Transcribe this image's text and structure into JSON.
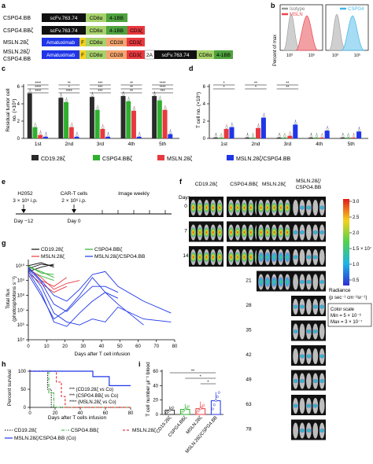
{
  "panels": {
    "a": {
      "letter": "a",
      "constructs": [
        {
          "name": "CSPG4.BB",
          "parts": [
            "scFv.763.74",
            "CD8α",
            "4-1BB"
          ]
        },
        {
          "name": "CSPG4.BBζ",
          "parts": [
            "scFv.763.74",
            "CD8α",
            "4-1BB",
            "CD3ζ"
          ]
        },
        {
          "name": "MSLN.28ζ",
          "parts": [
            "Amatuximab",
            "F",
            "CD8α",
            "CD28",
            "CD3ζ"
          ]
        },
        {
          "name_line1": "MSLN.28ζ/",
          "name_line2": "CSPG4.BB",
          "parts": [
            "Amatuximab",
            "F",
            "CD8α",
            "CD28",
            "CD3ζ",
            "2A",
            "scFv.763.74",
            "CD8α",
            "4-1BB"
          ]
        }
      ]
    },
    "b": {
      "letter": "b",
      "ylabel": "Percent of max",
      "legend_left": [
        "Isotype",
        "MSLN"
      ],
      "legend_right": [
        "CSPG4"
      ],
      "xticks": [
        "10³",
        "10⁵",
        "10³",
        "10⁵"
      ],
      "colors": {
        "isotype": "#b0b0b0",
        "msln": "#e8474f",
        "cspg4": "#3fb6e8"
      }
    },
    "c": {
      "letter": "c",
      "ylabel_line1": "Residual tumor cell",
      "ylabel_line2": "no. (×10⁵)",
      "yticks": [
        "0",
        "2",
        "4",
        "6"
      ],
      "groups": [
        "1st",
        "2nd",
        "3rd",
        "4th",
        "5th"
      ],
      "significance": [
        "****",
        "****",
        "****",
        "**",
        "*",
        "****",
        "***",
        "***",
        "***",
        "**",
        "**",
        "**",
        "****",
        "****",
        "***"
      ]
    },
    "d": {
      "letter": "d",
      "ylabel": "T cell no. (×10⁵)",
      "yticks": [
        "0",
        "2",
        "4",
        "6"
      ],
      "groups": [
        "1st",
        "2nd",
        "3rd",
        "4th",
        "5th"
      ],
      "significance": [
        "*",
        "*",
        "**",
        "*",
        "**",
        "**"
      ]
    },
    "legend_cd": {
      "items": [
        {
          "label": "CD19.28ζ",
          "color": "#2b2b2b"
        },
        {
          "label": "CSPG4.BBζ",
          "color": "#2fb02f"
        },
        {
          "label": "MSLN.28ζ",
          "color": "#e8393f"
        },
        {
          "label": "MSLN.28ζ/CSPG4.BB",
          "color": "#1f36e8"
        }
      ]
    },
    "e": {
      "letter": "e",
      "events": [
        {
          "line1": "H2052",
          "line2": "3 × 10⁶ i.p.",
          "day": "Day −12"
        },
        {
          "line1": "CAR-T cells",
          "line2": "2 × 10⁶ i.p.",
          "day": "Day 0"
        },
        {
          "line1": "Image weekly",
          "line2": "",
          "day": ""
        }
      ]
    },
    "f": {
      "letter": "f",
      "columns": [
        "CD19.28ζ",
        "CSPG4.BBζ",
        "MSLN.28ζ",
        "MSLN.28ζ/",
        "CSPG4.BB"
      ],
      "days_label": "Days",
      "days": [
        "0",
        "7",
        "14",
        "21",
        "28",
        "35",
        "42",
        "49",
        "63",
        "78"
      ],
      "colorbar_ticks": [
        "3.0",
        "2.5",
        "2.0",
        "1.5 × 10⁷",
        "1.0",
        "0.5"
      ],
      "radiance_line1": "Radiance",
      "radiance_line2": "(p sec⁻¹ cm⁻²sr⁻¹)",
      "scale_line1": "Color scale",
      "scale_line2": "Min = 5 × 10⁻⁶",
      "scale_line3": "Max = 3 × 10⁻⁷"
    },
    "g": {
      "letter": "g",
      "legend": [
        "CD19.28ζ",
        "MSLN.28ζ",
        "CSPG4.BBζ",
        "MSLN.28ζ/CSPG4.BB"
      ],
      "ylabel_line1": "Total flux",
      "ylabel_line2": "(photosphotons s⁻¹)",
      "xlabel": "Days after T cell infusion",
      "xticks": [
        "0",
        "10",
        "20",
        "30",
        "40",
        "50",
        "60",
        "70",
        "80"
      ],
      "yticks": [
        "10⁵",
        "10⁶",
        "10⁷",
        "10⁸",
        "10⁹",
        "10¹⁰"
      ]
    },
    "h": {
      "letter": "h",
      "ylabel": "Percent survival",
      "xlabel": "Days after T cells infusion",
      "xticks": [
        "0",
        "20",
        "40",
        "60",
        "80"
      ],
      "yticks": [
        "0",
        "50",
        "100"
      ],
      "annotations": [
        "*** (CD19.28ζ vs Co)",
        "*** (CSPG4.BBζ vs Co)",
        "**** (MSLN.28ζ vs Co)"
      ],
      "legend": [
        "CD19.28ζ",
        "CSPG4.BBζ",
        "MSLN.28ζ",
        "MSLN.28ζ/CSPG4.BB (Co)"
      ]
    },
    "i": {
      "letter": "i",
      "ylabel": "T cell number μl⁻¹ blood",
      "yticks": [
        "0",
        "20",
        "40",
        "60"
      ],
      "categories": [
        "CD19.28ζ",
        "CSPG4.BBζ",
        "MSLN.28ζ",
        "MSLN.28ζ/CSPG4.BB"
      ],
      "significance": [
        "**",
        "*",
        "*"
      ]
    }
  },
  "chart_data": [
    {
      "panel": "c",
      "type": "bar",
      "categories": [
        "1st",
        "2nd",
        "3rd",
        "4th",
        "5th"
      ],
      "ylim": [
        0,
        6
      ],
      "series": [
        {
          "name": "CD19.28ζ",
          "values": [
            5.2,
            4.7,
            4.8,
            4.9,
            4.9
          ]
        },
        {
          "name": "CSPG4.BBζ",
          "values": [
            1.3,
            4.2,
            3.3,
            4.3,
            4.4
          ]
        },
        {
          "name": "MSLN.28ζ",
          "values": [
            0.4,
            1.3,
            1.1,
            3.2,
            3.3
          ]
        },
        {
          "name": "MSLN.28ζ/CSPG4.BB",
          "values": [
            0.2,
            0.2,
            0.2,
            0.2,
            0.5
          ]
        }
      ]
    },
    {
      "panel": "d",
      "type": "bar",
      "categories": [
        "1st",
        "2nd",
        "3rd",
        "4th",
        "5th"
      ],
      "ylim": [
        0,
        6
      ],
      "series": [
        {
          "name": "CD19.28ζ",
          "values": [
            0.1,
            0.1,
            0.1,
            0.1,
            0.1
          ]
        },
        {
          "name": "CSPG4.BBζ",
          "values": [
            0.1,
            0.1,
            0.1,
            0.1,
            0.1
          ]
        },
        {
          "name": "MSLN.28ζ",
          "values": [
            1.1,
            1.2,
            0.3,
            0.1,
            0.1
          ]
        },
        {
          "name": "MSLN.28ζ/CSPG4.BB",
          "values": [
            1.3,
            2.4,
            1.6,
            0.9,
            0.8
          ]
        }
      ]
    },
    {
      "panel": "i",
      "type": "bar",
      "categories": [
        "CD19.28ζ",
        "CSPG4.BBζ",
        "MSLN.28ζ",
        "MSLN.28ζ/CSPG4.BB"
      ],
      "ylim": [
        0,
        60
      ],
      "values": [
        6,
        7,
        8,
        19
      ]
    },
    {
      "panel": "h",
      "type": "line",
      "xlim": [
        0,
        80
      ],
      "ylim": [
        0,
        100
      ],
      "series": [
        {
          "name": "CD19.28ζ",
          "x": [
            0,
            14,
            14,
            17,
            17,
            80
          ],
          "y": [
            100,
            100,
            50,
            50,
            0,
            0
          ]
        },
        {
          "name": "CSPG4.BBζ",
          "x": [
            0,
            15,
            15,
            19,
            19,
            80
          ],
          "y": [
            100,
            100,
            40,
            40,
            0,
            0
          ]
        },
        {
          "name": "MSLN.28ζ",
          "x": [
            0,
            21,
            21,
            25,
            25,
            28,
            28,
            80
          ],
          "y": [
            100,
            100,
            70,
            70,
            30,
            30,
            0,
            0
          ]
        },
        {
          "name": "MSLN.28ζ/CSPG4.BB (Co)",
          "x": [
            0,
            50,
            50,
            63,
            63,
            80
          ],
          "y": [
            100,
            100,
            85,
            85,
            60,
            60
          ]
        }
      ]
    }
  ]
}
